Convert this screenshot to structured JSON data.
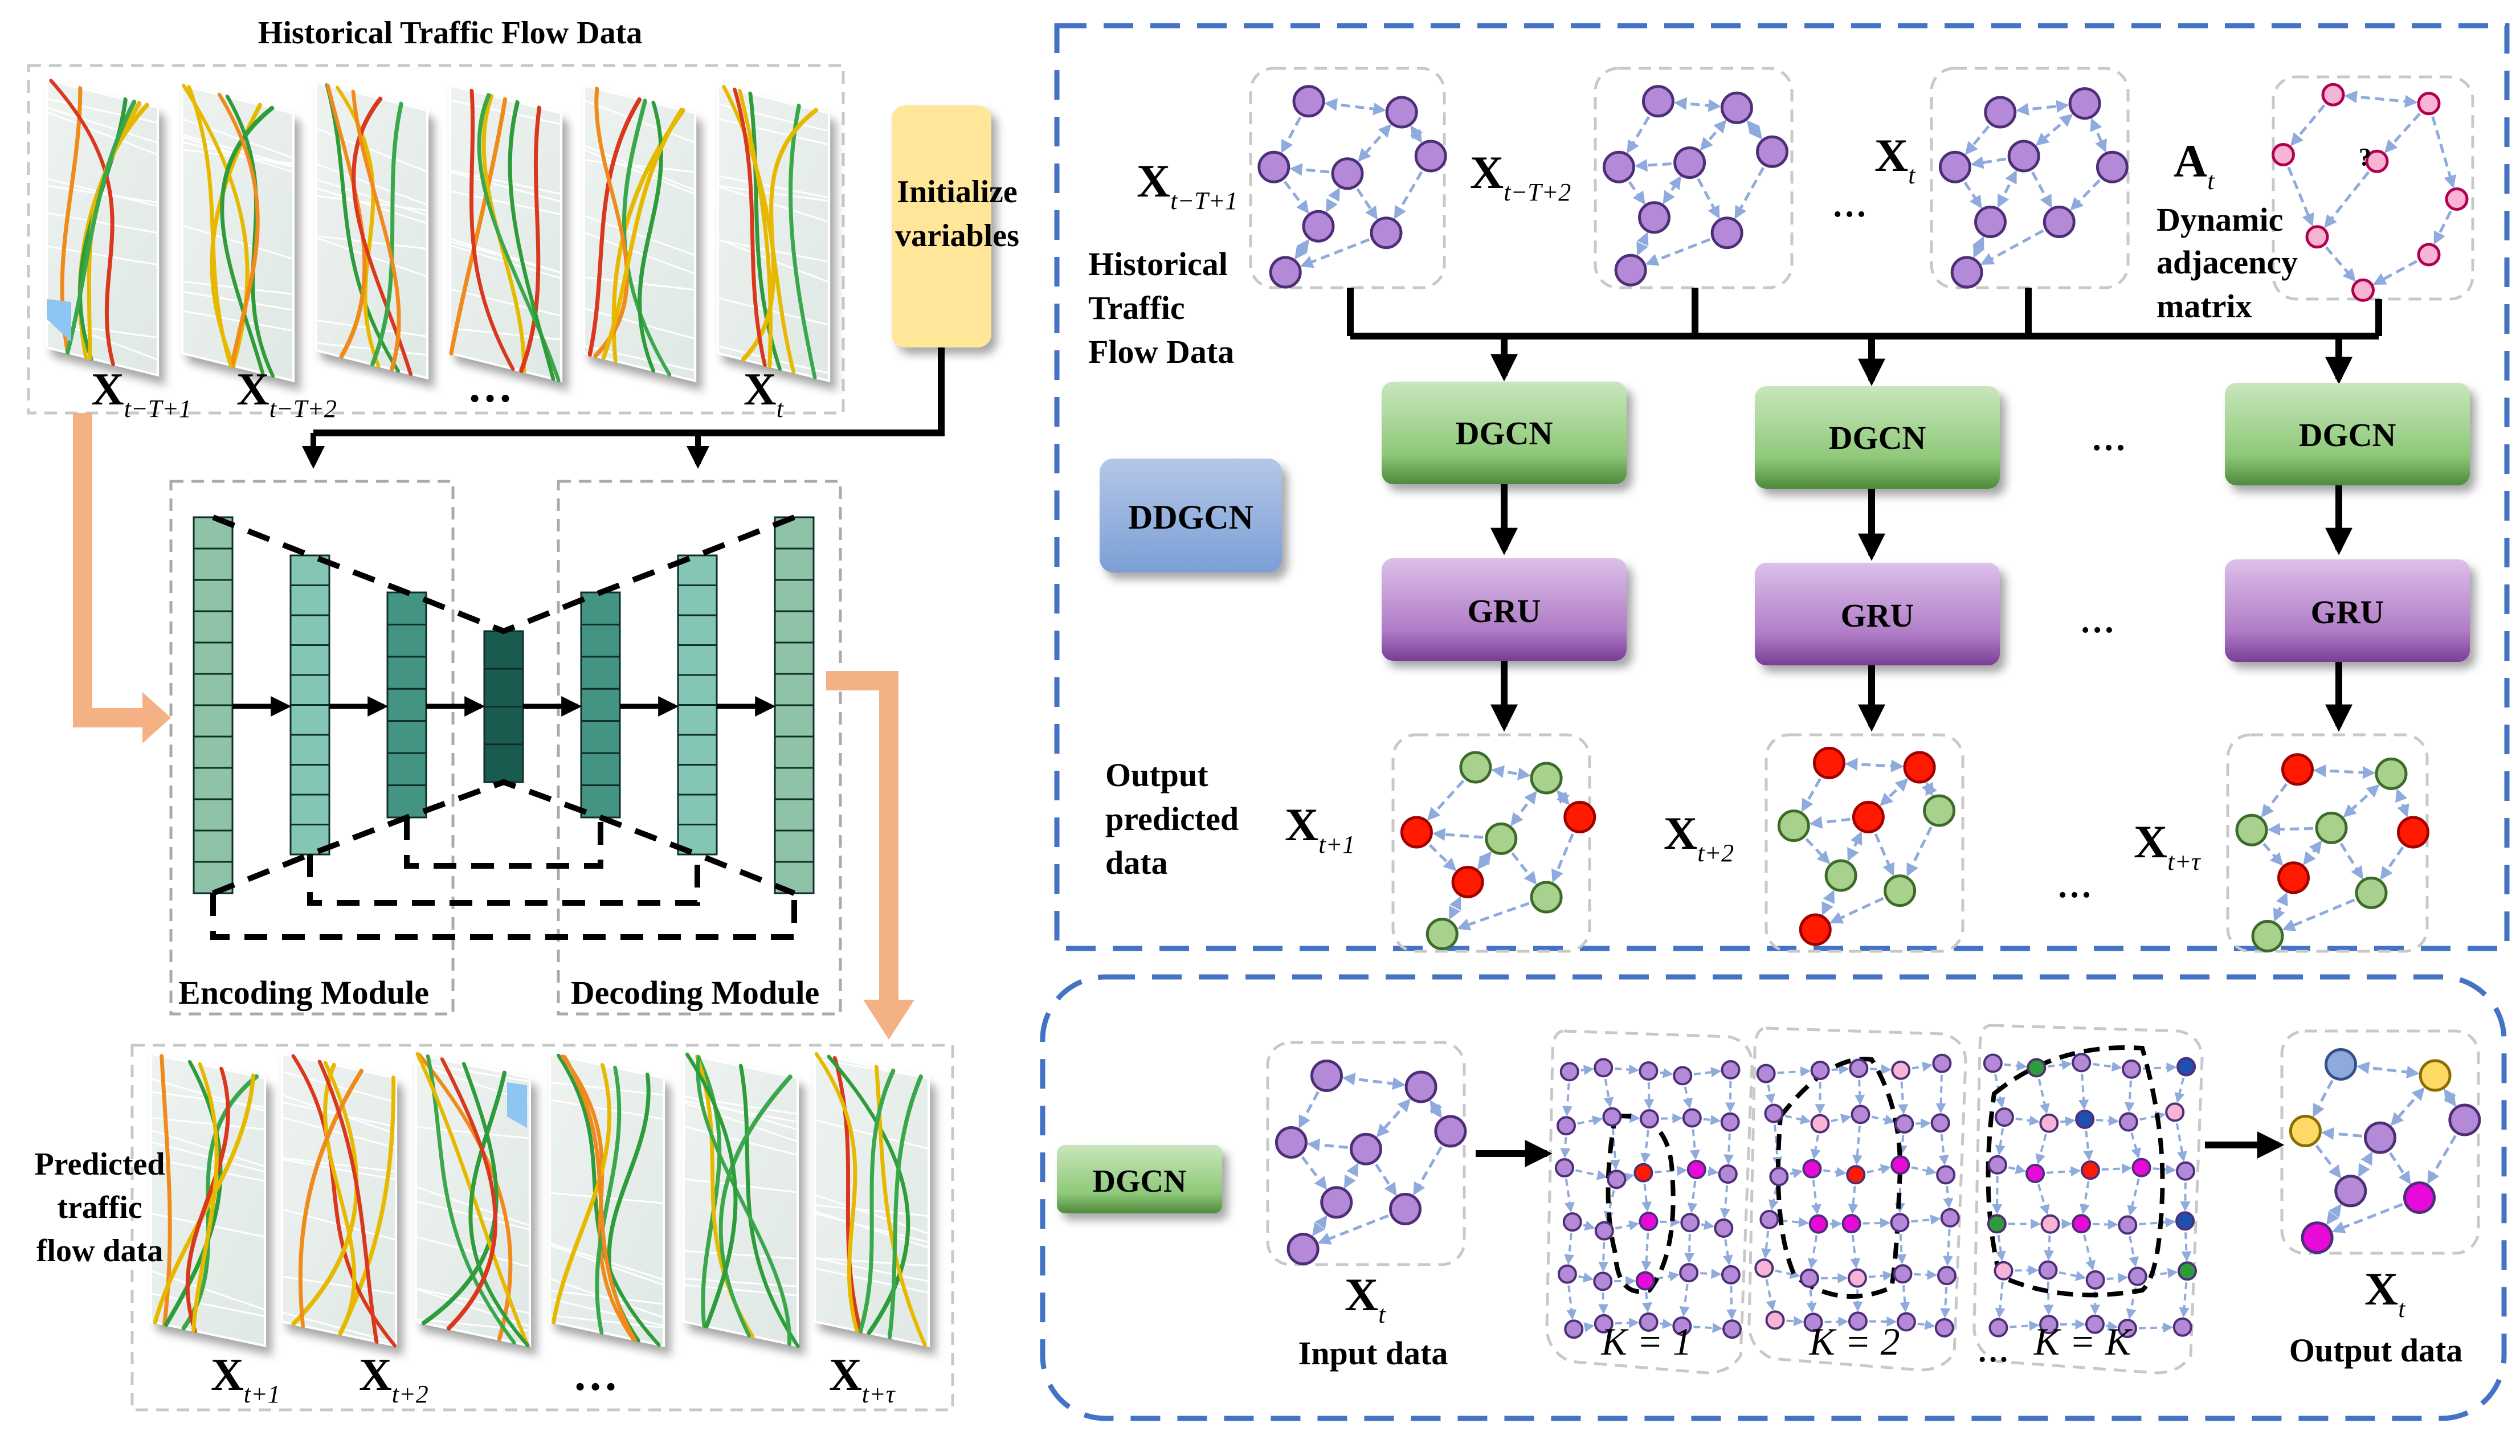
{
  "left": {
    "historical_title": "Historical Traffic Flow Data",
    "init_box": [
      "Initialize",
      "variables"
    ],
    "encoding_label": "Encoding Module",
    "decoding_label": "Decoding Module",
    "predicted_label": [
      "Predicted",
      "traffic",
      "flow data"
    ],
    "input_frames": [
      {
        "main": "X",
        "sub": "t−T+1"
      },
      {
        "main": "X",
        "sub": "t−T+2"
      },
      {
        "main": "…",
        "sub": ""
      },
      {
        "main": "X",
        "sub": "t"
      }
    ],
    "output_frames": [
      {
        "main": "X",
        "sub": "t+1"
      },
      {
        "main": "X",
        "sub": "t+2"
      },
      {
        "main": "…",
        "sub": ""
      },
      {
        "main": "X",
        "sub": "t+τ"
      }
    ]
  },
  "ddgcn": {
    "badge": "DDGCN",
    "hist_label": [
      "Historical",
      "Traffic",
      "Flow Data"
    ],
    "output_label": [
      "Output",
      "predicted",
      "data"
    ],
    "adj_label": [
      "Dynamic",
      "adjacency",
      "matrix"
    ],
    "adj_main": "A",
    "adj_sub": "t",
    "question_mark": "?",
    "dgcn_label": "DGCN",
    "gru_label": "GRU",
    "ellipsis": "…",
    "hist_graphs": [
      {
        "main": "X",
        "sub": "t−T+1"
      },
      {
        "main": "X",
        "sub": "t−T+2"
      },
      {
        "main": "X",
        "sub": "t"
      }
    ],
    "out_graphs": [
      {
        "main": "X",
        "sub": "t+1"
      },
      {
        "main": "X",
        "sub": "t+2"
      },
      {
        "main": "X",
        "sub": "t+τ"
      }
    ]
  },
  "dgcn": {
    "badge": "DGCN",
    "input_main": "X",
    "input_sub": "t",
    "input_label": "Input data",
    "output_main": "X",
    "output_sub": "t",
    "output_label": "Output data",
    "hops": [
      "K = 1",
      "K = 2",
      "K = K"
    ],
    "ellipsis": "…"
  },
  "colors": {
    "dashed_frame": "#4472c4",
    "dgcn_green": "#8fc97a",
    "gru_purple": "#b07cc6",
    "ddgcn_blue": "#8eaadb",
    "init_yellow": "#ffe699",
    "orange_arrow": "#f4b183",
    "node_purple": "#b48ad8",
    "node_red": "#ff1a00",
    "node_green": "#a9d18e",
    "node_magenta": "#e80ad8",
    "edge_blue": "#8faadc"
  }
}
